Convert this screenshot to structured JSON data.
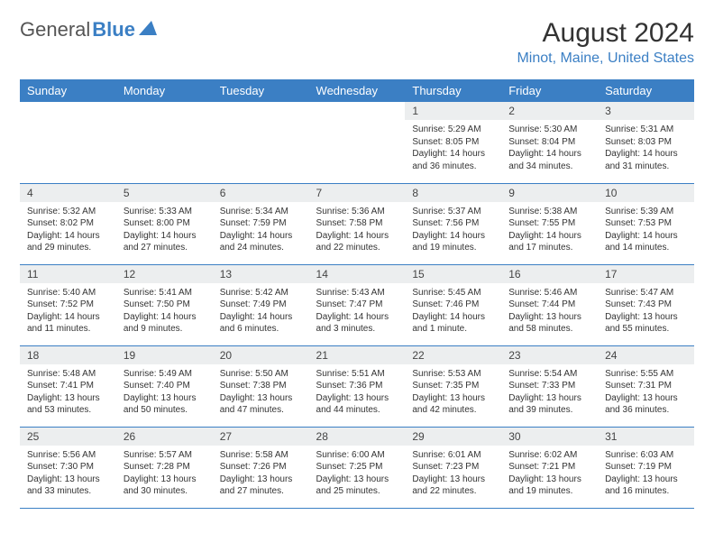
{
  "brand": {
    "part1": "General",
    "part2": "Blue"
  },
  "title": "August 2024",
  "location": "Minot, Maine, United States",
  "header_bg": "#3b7fc4",
  "daynum_bg": "#eceeef",
  "background": "#ffffff",
  "text_color": "#333333",
  "font_family": "Arial, Helvetica, sans-serif",
  "title_fontsize": 30,
  "location_fontsize": 16,
  "dayheader_fontsize": 13,
  "body_fontsize": 10,
  "daynum_fontsize": 12,
  "days_of_week": [
    "Sunday",
    "Monday",
    "Tuesday",
    "Wednesday",
    "Thursday",
    "Friday",
    "Saturday"
  ],
  "weeks": [
    [
      null,
      null,
      null,
      null,
      {
        "n": "1",
        "sunrise": "Sunrise: 5:29 AM",
        "sunset": "Sunset: 8:05 PM",
        "daylight": "Daylight: 14 hours and 36 minutes."
      },
      {
        "n": "2",
        "sunrise": "Sunrise: 5:30 AM",
        "sunset": "Sunset: 8:04 PM",
        "daylight": "Daylight: 14 hours and 34 minutes."
      },
      {
        "n": "3",
        "sunrise": "Sunrise: 5:31 AM",
        "sunset": "Sunset: 8:03 PM",
        "daylight": "Daylight: 14 hours and 31 minutes."
      }
    ],
    [
      {
        "n": "4",
        "sunrise": "Sunrise: 5:32 AM",
        "sunset": "Sunset: 8:02 PM",
        "daylight": "Daylight: 14 hours and 29 minutes."
      },
      {
        "n": "5",
        "sunrise": "Sunrise: 5:33 AM",
        "sunset": "Sunset: 8:00 PM",
        "daylight": "Daylight: 14 hours and 27 minutes."
      },
      {
        "n": "6",
        "sunrise": "Sunrise: 5:34 AM",
        "sunset": "Sunset: 7:59 PM",
        "daylight": "Daylight: 14 hours and 24 minutes."
      },
      {
        "n": "7",
        "sunrise": "Sunrise: 5:36 AM",
        "sunset": "Sunset: 7:58 PM",
        "daylight": "Daylight: 14 hours and 22 minutes."
      },
      {
        "n": "8",
        "sunrise": "Sunrise: 5:37 AM",
        "sunset": "Sunset: 7:56 PM",
        "daylight": "Daylight: 14 hours and 19 minutes."
      },
      {
        "n": "9",
        "sunrise": "Sunrise: 5:38 AM",
        "sunset": "Sunset: 7:55 PM",
        "daylight": "Daylight: 14 hours and 17 minutes."
      },
      {
        "n": "10",
        "sunrise": "Sunrise: 5:39 AM",
        "sunset": "Sunset: 7:53 PM",
        "daylight": "Daylight: 14 hours and 14 minutes."
      }
    ],
    [
      {
        "n": "11",
        "sunrise": "Sunrise: 5:40 AM",
        "sunset": "Sunset: 7:52 PM",
        "daylight": "Daylight: 14 hours and 11 minutes."
      },
      {
        "n": "12",
        "sunrise": "Sunrise: 5:41 AM",
        "sunset": "Sunset: 7:50 PM",
        "daylight": "Daylight: 14 hours and 9 minutes."
      },
      {
        "n": "13",
        "sunrise": "Sunrise: 5:42 AM",
        "sunset": "Sunset: 7:49 PM",
        "daylight": "Daylight: 14 hours and 6 minutes."
      },
      {
        "n": "14",
        "sunrise": "Sunrise: 5:43 AM",
        "sunset": "Sunset: 7:47 PM",
        "daylight": "Daylight: 14 hours and 3 minutes."
      },
      {
        "n": "15",
        "sunrise": "Sunrise: 5:45 AM",
        "sunset": "Sunset: 7:46 PM",
        "daylight": "Daylight: 14 hours and 1 minute."
      },
      {
        "n": "16",
        "sunrise": "Sunrise: 5:46 AM",
        "sunset": "Sunset: 7:44 PM",
        "daylight": "Daylight: 13 hours and 58 minutes."
      },
      {
        "n": "17",
        "sunrise": "Sunrise: 5:47 AM",
        "sunset": "Sunset: 7:43 PM",
        "daylight": "Daylight: 13 hours and 55 minutes."
      }
    ],
    [
      {
        "n": "18",
        "sunrise": "Sunrise: 5:48 AM",
        "sunset": "Sunset: 7:41 PM",
        "daylight": "Daylight: 13 hours and 53 minutes."
      },
      {
        "n": "19",
        "sunrise": "Sunrise: 5:49 AM",
        "sunset": "Sunset: 7:40 PM",
        "daylight": "Daylight: 13 hours and 50 minutes."
      },
      {
        "n": "20",
        "sunrise": "Sunrise: 5:50 AM",
        "sunset": "Sunset: 7:38 PM",
        "daylight": "Daylight: 13 hours and 47 minutes."
      },
      {
        "n": "21",
        "sunrise": "Sunrise: 5:51 AM",
        "sunset": "Sunset: 7:36 PM",
        "daylight": "Daylight: 13 hours and 44 minutes."
      },
      {
        "n": "22",
        "sunrise": "Sunrise: 5:53 AM",
        "sunset": "Sunset: 7:35 PM",
        "daylight": "Daylight: 13 hours and 42 minutes."
      },
      {
        "n": "23",
        "sunrise": "Sunrise: 5:54 AM",
        "sunset": "Sunset: 7:33 PM",
        "daylight": "Daylight: 13 hours and 39 minutes."
      },
      {
        "n": "24",
        "sunrise": "Sunrise: 5:55 AM",
        "sunset": "Sunset: 7:31 PM",
        "daylight": "Daylight: 13 hours and 36 minutes."
      }
    ],
    [
      {
        "n": "25",
        "sunrise": "Sunrise: 5:56 AM",
        "sunset": "Sunset: 7:30 PM",
        "daylight": "Daylight: 13 hours and 33 minutes."
      },
      {
        "n": "26",
        "sunrise": "Sunrise: 5:57 AM",
        "sunset": "Sunset: 7:28 PM",
        "daylight": "Daylight: 13 hours and 30 minutes."
      },
      {
        "n": "27",
        "sunrise": "Sunrise: 5:58 AM",
        "sunset": "Sunset: 7:26 PM",
        "daylight": "Daylight: 13 hours and 27 minutes."
      },
      {
        "n": "28",
        "sunrise": "Sunrise: 6:00 AM",
        "sunset": "Sunset: 7:25 PM",
        "daylight": "Daylight: 13 hours and 25 minutes."
      },
      {
        "n": "29",
        "sunrise": "Sunrise: 6:01 AM",
        "sunset": "Sunset: 7:23 PM",
        "daylight": "Daylight: 13 hours and 22 minutes."
      },
      {
        "n": "30",
        "sunrise": "Sunrise: 6:02 AM",
        "sunset": "Sunset: 7:21 PM",
        "daylight": "Daylight: 13 hours and 19 minutes."
      },
      {
        "n": "31",
        "sunrise": "Sunrise: 6:03 AM",
        "sunset": "Sunset: 7:19 PM",
        "daylight": "Daylight: 13 hours and 16 minutes."
      }
    ]
  ]
}
